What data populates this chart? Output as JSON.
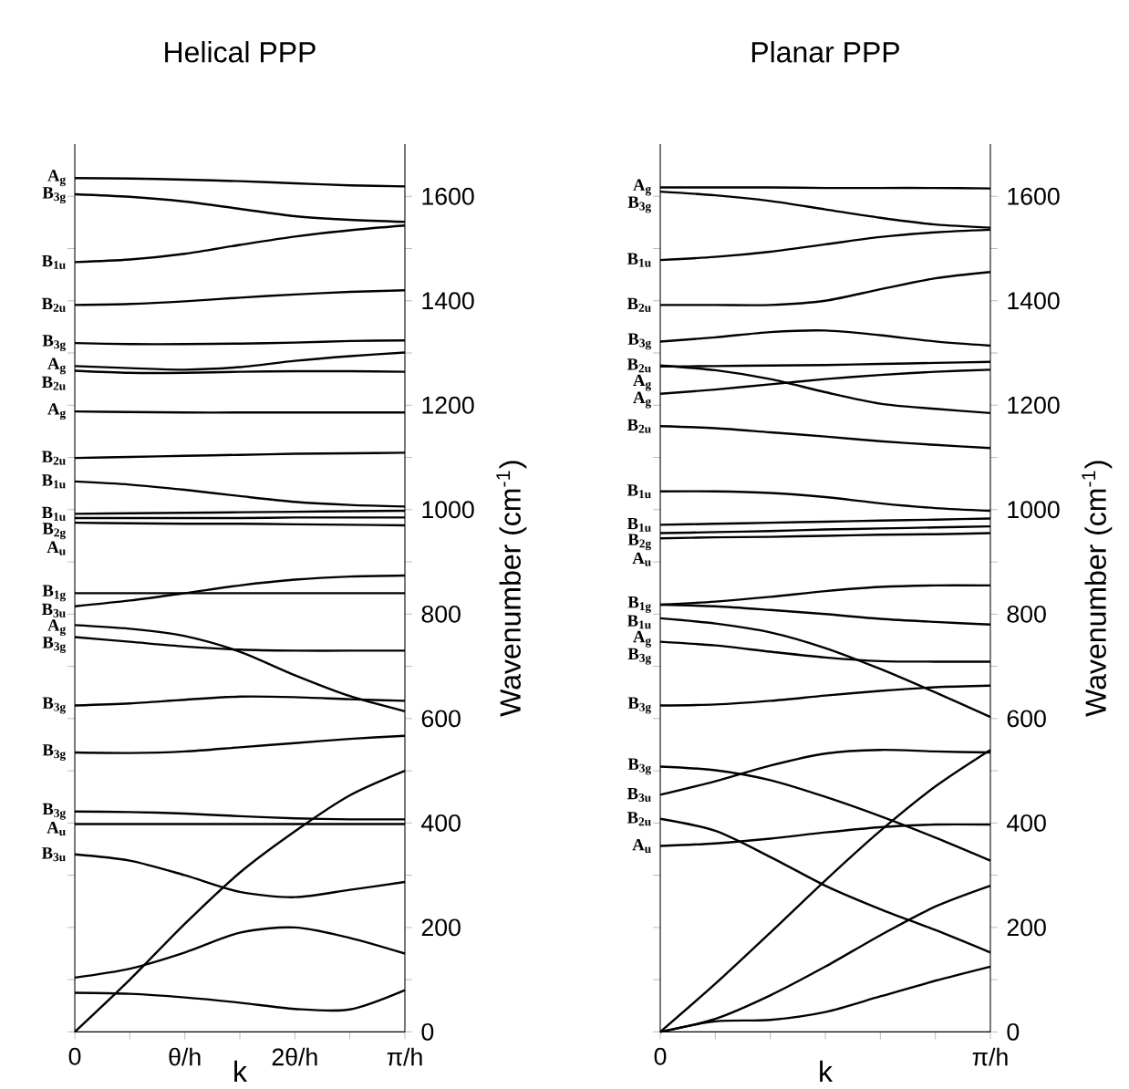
{
  "chart_data": [
    {
      "type": "line",
      "title": "Helical PPP",
      "xlabel": "k",
      "ylabel": "Wavenumber (cm$^{-1}$)",
      "categories": [
        "0",
        null,
        "θ/h",
        null,
        "2θ/h",
        null,
        "π/h"
      ],
      "ylim": [
        0,
        1700
      ],
      "yticks": [
        0,
        {
          "value": 100,
          "label": null
        },
        200,
        {
          "value": 300,
          "label": null
        },
        400,
        {
          "value": 500,
          "label": null
        },
        600,
        {
          "value": 700,
          "label": null
        },
        800,
        {
          "value": 900,
          "label": null
        },
        1000,
        {
          "value": 1100,
          "label": null
        },
        1200,
        {
          "value": 1300,
          "label": null
        },
        1400,
        {
          "value": 1500,
          "label": null
        },
        1600
      ],
      "series": [
        {
          "color": "#000000",
          "values": [
            1635,
            1634,
            1632,
            1629,
            1625,
            1621,
            1619
          ]
        },
        {
          "color": "#000000",
          "values": [
            1604,
            1599,
            1590,
            1576,
            1562,
            1555,
            1551
          ]
        },
        {
          "color": "#000000",
          "values": [
            1474,
            1479,
            1490,
            1507,
            1523,
            1535,
            1544
          ]
        },
        {
          "color": "#000000",
          "values": [
            1392,
            1394,
            1399,
            1406,
            1412,
            1417,
            1420
          ]
        },
        {
          "color": "#000000",
          "values": [
            1319,
            1317,
            1317,
            1318,
            1320,
            1323,
            1324
          ]
        },
        {
          "color": "#000000",
          "values": [
            1275,
            1271,
            1268,
            1273,
            1285,
            1294,
            1301
          ]
        },
        {
          "color": "#000000",
          "values": [
            1266,
            1262,
            1262,
            1264,
            1265,
            1265,
            1264
          ]
        },
        {
          "color": "#000000",
          "values": [
            1188,
            1187,
            1186,
            1186,
            1186,
            1186,
            1186
          ]
        },
        {
          "color": "#000000",
          "values": [
            1099,
            1101,
            1103,
            1105,
            1107,
            1108,
            1109
          ]
        },
        {
          "color": "#000000",
          "values": [
            1054,
            1048,
            1038,
            1026,
            1015,
            1009,
            1006
          ]
        },
        {
          "color": "#000000",
          "values": [
            992,
            993,
            994,
            995,
            996,
            997,
            998
          ]
        },
        {
          "color": "#000000",
          "values": [
            984,
            984,
            984,
            984,
            985,
            985,
            985
          ]
        },
        {
          "color": "#000000",
          "values": [
            975,
            974,
            973,
            973,
            972,
            971,
            970
          ]
        },
        {
          "color": "#000000",
          "values": [
            815,
            826,
            840,
            855,
            866,
            872,
            874
          ]
        },
        {
          "color": "#000000",
          "values": [
            840,
            840,
            840,
            840,
            840,
            840,
            840
          ]
        },
        {
          "color": "#000000",
          "values": [
            779,
            772,
            758,
            728,
            683,
            643,
            614
          ]
        },
        {
          "color": "#000000",
          "values": [
            756,
            747,
            738,
            732,
            730,
            730,
            730
          ]
        },
        {
          "color": "#000000",
          "values": [
            625,
            629,
            636,
            642,
            641,
            637,
            634
          ]
        },
        {
          "color": "#000000",
          "values": [
            535,
            534,
            537,
            545,
            553,
            561,
            567
          ]
        },
        {
          "color": "#000000",
          "values": [
            422,
            421,
            418,
            413,
            409,
            407,
            407
          ]
        },
        {
          "color": "#000000",
          "values": [
            398,
            398,
            398,
            398,
            398,
            398,
            398
          ]
        },
        {
          "color": "#000000",
          "values": [
            0,
            100,
            207,
            305,
            384,
            453,
            500
          ]
        },
        {
          "color": "#000000",
          "values": [
            340,
            328,
            300,
            268,
            258,
            272,
            287
          ]
        },
        {
          "color": "#000000",
          "values": [
            104,
            121,
            152,
            190,
            200,
            180,
            150
          ]
        },
        {
          "color": "#000000",
          "values": [
            75,
            73,
            66,
            56,
            44,
            43,
            80
          ]
        }
      ],
      "annotations": [
        {
          "text": "A$_{g}$",
          "x": "0",
          "y": 1635
        },
        {
          "text": "B$_{3g}$",
          "x": "0",
          "y": 1604
        },
        {
          "text": "B$_{1u}$",
          "x": "0",
          "y": 1474
        },
        {
          "text": "B$_{2u}$",
          "x": "0",
          "y": 1392
        },
        {
          "text": "B$_{3g}$",
          "x": "0",
          "y": 1319
        },
        {
          "text": "A$_{g}$",
          "x": "0",
          "y": 1275
        },
        {
          "text": "B$_{2u}$",
          "x": "0",
          "y": 1266
        },
        {
          "text": "A$_{g}$",
          "x": "0",
          "y": 1188
        },
        {
          "text": "B$_{2u}$",
          "x": "0",
          "y": 1099
        },
        {
          "text": "B$_{1u}$",
          "x": "0",
          "y": 1054
        },
        {
          "text": "B$_{1u}$",
          "x": "0",
          "y": 992
        },
        {
          "text": "B$_{2g}$",
          "x": "0",
          "y": 984
        },
        {
          "text": "A$_{u}$",
          "x": "0",
          "y": 975
        },
        {
          "text": "B$_{1g}$",
          "x": "0",
          "y": 840
        },
        {
          "text": "B$_{3u}$",
          "x": "0",
          "y": 815
        },
        {
          "text": "A$_{g}$",
          "x": "0",
          "y": 779
        },
        {
          "text": "B$_{3g}$",
          "x": "0",
          "y": 756
        },
        {
          "text": "B$_{3g}$",
          "x": "0",
          "y": 625
        },
        {
          "text": "B$_{3g}$",
          "x": "0",
          "y": 535
        },
        {
          "text": "B$_{3g}$",
          "x": "0",
          "y": 422
        },
        {
          "text": "A$_{u}$",
          "x": "0",
          "y": 398
        },
        {
          "text": "B$_{3u}$",
          "x": "0",
          "y": 340
        }
      ]
    },
    {
      "type": "line",
      "title": "Planar PPP",
      "xlabel": "k",
      "ylabel": "Wavenumber (cm$^{-1}$)",
      "categories": [
        "0",
        null,
        null,
        null,
        null,
        null,
        "π/h"
      ],
      "ylim": [
        0,
        1700
      ],
      "yticks": [
        0,
        {
          "value": 100,
          "label": null
        },
        200,
        {
          "value": 300,
          "label": null
        },
        400,
        {
          "value": 500,
          "label": null
        },
        600,
        {
          "value": 700,
          "label": null
        },
        800,
        {
          "value": 900,
          "label": null
        },
        1000,
        {
          "value": 1100,
          "label": null
        },
        1200,
        {
          "value": 1300,
          "label": null
        },
        1400,
        {
          "value": 1500,
          "label": null
        },
        1600
      ],
      "series": [
        {
          "color": "#000000",
          "values": [
            1617,
            1617,
            1617,
            1616,
            1616,
            1616,
            1615
          ]
        },
        {
          "color": "#000000",
          "values": [
            1609,
            1602,
            1591,
            1575,
            1559,
            1546,
            1540
          ]
        },
        {
          "color": "#000000",
          "values": [
            1478,
            1484,
            1494,
            1508,
            1522,
            1531,
            1536
          ]
        },
        {
          "color": "#000000",
          "values": [
            1392,
            1392,
            1392,
            1400,
            1422,
            1443,
            1455
          ]
        },
        {
          "color": "#000000",
          "values": [
            1322,
            1330,
            1340,
            1343,
            1334,
            1322,
            1314
          ]
        },
        {
          "color": "#000000",
          "values": [
            1274,
            1275,
            1276,
            1277,
            1279,
            1281,
            1283
          ]
        },
        {
          "color": "#000000",
          "values": [
            1276,
            1267,
            1250,
            1225,
            1203,
            1193,
            1185
          ]
        },
        {
          "color": "#000000",
          "values": [
            1222,
            1230,
            1240,
            1250,
            1258,
            1264,
            1268
          ]
        },
        {
          "color": "#000000",
          "values": [
            1160,
            1156,
            1148,
            1140,
            1131,
            1124,
            1118
          ]
        },
        {
          "color": "#000000",
          "values": [
            1035,
            1035,
            1032,
            1024,
            1012,
            1003,
            998
          ]
        },
        {
          "color": "#000000",
          "values": [
            971,
            973,
            975,
            977,
            979,
            981,
            983
          ]
        },
        {
          "color": "#000000",
          "values": [
            955,
            957,
            959,
            962,
            964,
            966,
            968
          ]
        },
        {
          "color": "#000000",
          "values": [
            945,
            947,
            948,
            950,
            952,
            953,
            955
          ]
        },
        {
          "color": "#000000",
          "values": [
            818,
            824,
            833,
            844,
            852,
            855,
            855
          ]
        },
        {
          "color": "#000000",
          "values": [
            818,
            815,
            808,
            800,
            791,
            785,
            780
          ]
        },
        {
          "color": "#000000",
          "values": [
            792,
            782,
            765,
            735,
            695,
            650,
            603
          ]
        },
        {
          "color": "#000000",
          "values": [
            747,
            740,
            728,
            717,
            710,
            709,
            709
          ]
        },
        {
          "color": "#000000",
          "values": [
            625,
            627,
            634,
            644,
            653,
            660,
            663
          ]
        },
        {
          "color": "#000000",
          "values": [
            508,
            501,
            482,
            450,
            413,
            372,
            328
          ]
        },
        {
          "color": "#000000",
          "values": [
            454,
            480,
            510,
            533,
            540,
            537,
            535
          ]
        },
        {
          "color": "#000000",
          "values": [
            408,
            385,
            335,
            280,
            235,
            195,
            152
          ]
        },
        {
          "color": "#000000",
          "values": [
            356,
            361,
            370,
            382,
            392,
            397,
            397
          ]
        },
        {
          "color": "#000000",
          "values": [
            0,
            92,
            190,
            290,
            385,
            470,
            540
          ]
        },
        {
          "color": "#000000",
          "values": [
            0,
            25,
            70,
            125,
            185,
            240,
            280
          ]
        },
        {
          "color": "#000000",
          "values": [
            0,
            20,
            23,
            38,
            68,
            98,
            125
          ]
        }
      ],
      "annotations": [
        {
          "text": "A$_{g}$",
          "x": "0",
          "y": 1617
        },
        {
          "text": "B$_{3g}$",
          "x": "0",
          "y": 1609
        },
        {
          "text": "B$_{1u}$",
          "x": "0",
          "y": 1478
        },
        {
          "text": "B$_{2u}$",
          "x": "0",
          "y": 1392
        },
        {
          "text": "B$_{3g}$",
          "x": "0",
          "y": 1322
        },
        {
          "text": "A$_{g}$",
          "x": "0",
          "y": 1274
        },
        {
          "text": "B$_{2u}$",
          "x": "0",
          "y": 1276
        },
        {
          "text": "A$_{g}$",
          "x": "0",
          "y": 1222
        },
        {
          "text": "B$_{2u}$",
          "x": "0",
          "y": 1160
        },
        {
          "text": "B$_{1u}$",
          "x": "0",
          "y": 1035
        },
        {
          "text": "B$_{1u}$",
          "x": "0",
          "y": 971
        },
        {
          "text": "B$_{2g}$",
          "x": "0",
          "y": 955
        },
        {
          "text": "A$_{u}$",
          "x": "0",
          "y": 945
        },
        {
          "text": "B$_{1g}$",
          "x": "0",
          "y": 818
        },
        {
          "text": "B$_{1u}$",
          "x": "0",
          "y": 818
        },
        {
          "text": "A$_{g}$",
          "x": "0",
          "y": 792
        },
        {
          "text": "B$_{3g}$",
          "x": "0",
          "y": 747
        },
        {
          "text": "B$_{3g}$",
          "x": "0",
          "y": 625
        },
        {
          "text": "B$_{3g}$",
          "x": "0",
          "y": 508
        },
        {
          "text": "B$_{3u}$",
          "x": "0",
          "y": 454
        },
        {
          "text": "B$_{2u}$",
          "x": "0",
          "y": 408
        },
        {
          "text": "A$_{u}$",
          "x": "0",
          "y": 356
        }
      ]
    }
  ]
}
